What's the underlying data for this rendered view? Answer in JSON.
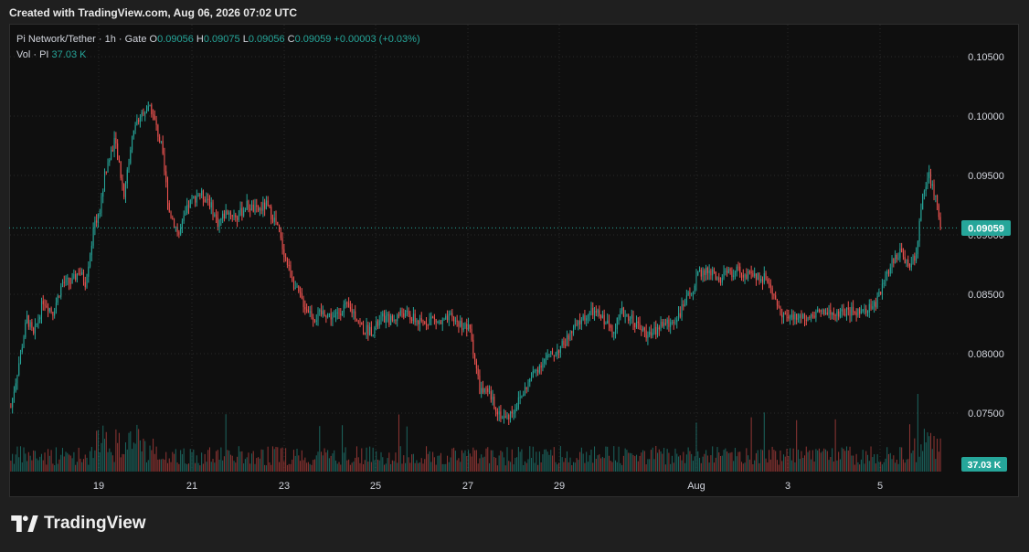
{
  "header": {
    "created_text": "Created with TradingView.com, Aug 06, 2026 07:02 UTC"
  },
  "legend": {
    "symbol": "Pi Network/Tether · 1h · Gate",
    "open_label": "O",
    "open": "0.09056",
    "high_label": "H",
    "high": "0.09075",
    "low_label": "L",
    "low": "0.09056",
    "close_label": "C",
    "close": "0.09059",
    "change": "+0.00003 (+0.03%)",
    "vol_label": "Vol · PI",
    "vol_value": "37.03 K"
  },
  "footer": {
    "brand": "TradingView"
  },
  "colors": {
    "up": "#26a69a",
    "down": "#ef5350",
    "bg": "#0f0f0f",
    "grid": "#2a2a2a",
    "last_price": "#26a69a"
  },
  "chart_data": {
    "type": "candlestick",
    "title": "Pi Network/Tether · 1h · Gate",
    "interval": "1h",
    "exchange": "Gate",
    "ylim": [
      0.0728,
      0.1062
    ],
    "y_ticks": [
      "0.10500",
      "0.10000",
      "0.09500",
      "0.09000",
      "0.08500",
      "0.08000",
      "0.07500"
    ],
    "y_tick_values": [
      0.105,
      0.1,
      0.095,
      0.09,
      0.085,
      0.08,
      0.075
    ],
    "x_ticks": [
      "19",
      "21",
      "23",
      "25",
      "27",
      "29",
      "Aug",
      "3",
      "5"
    ],
    "last_price_label": "0.09059",
    "last_price": 0.09059,
    "volume_label": "37.03 K",
    "grid": true,
    "price_anchors": [
      [
        0,
        0.0755
      ],
      [
        6,
        0.08
      ],
      [
        10,
        0.083
      ],
      [
        14,
        0.0815
      ],
      [
        20,
        0.0845
      ],
      [
        26,
        0.0835
      ],
      [
        32,
        0.086
      ],
      [
        38,
        0.086
      ],
      [
        42,
        0.087
      ],
      [
        46,
        0.086
      ],
      [
        52,
        0.091
      ],
      [
        55,
        0.092
      ],
      [
        58,
        0.095
      ],
      [
        64,
        0.098
      ],
      [
        70,
        0.0935
      ],
      [
        76,
        0.099
      ],
      [
        82,
        0.1005
      ],
      [
        87,
        0.1005
      ],
      [
        93,
        0.0975
      ],
      [
        98,
        0.092
      ],
      [
        104,
        0.09
      ],
      [
        110,
        0.0925
      ],
      [
        116,
        0.0935
      ],
      [
        122,
        0.093
      ],
      [
        128,
        0.091
      ],
      [
        134,
        0.092
      ],
      [
        140,
        0.0915
      ],
      [
        146,
        0.0925
      ],
      [
        152,
        0.092
      ],
      [
        158,
        0.0925
      ],
      [
        164,
        0.091
      ],
      [
        170,
        0.088
      ],
      [
        176,
        0.0855
      ],
      [
        182,
        0.084
      ],
      [
        188,
        0.083
      ],
      [
        194,
        0.0835
      ],
      [
        200,
        0.083
      ],
      [
        206,
        0.084
      ],
      [
        212,
        0.0835
      ],
      [
        218,
        0.082
      ],
      [
        224,
        0.082
      ],
      [
        230,
        0.083
      ],
      [
        236,
        0.0828
      ],
      [
        242,
        0.0835
      ],
      [
        248,
        0.083
      ],
      [
        254,
        0.0825
      ],
      [
        260,
        0.083
      ],
      [
        266,
        0.0825
      ],
      [
        272,
        0.083
      ],
      [
        278,
        0.0825
      ],
      [
        284,
        0.082
      ],
      [
        290,
        0.077
      ],
      [
        296,
        0.0765
      ],
      [
        302,
        0.075
      ],
      [
        306,
        0.0745
      ],
      [
        312,
        0.0755
      ],
      [
        318,
        0.077
      ],
      [
        324,
        0.0785
      ],
      [
        330,
        0.0795
      ],
      [
        336,
        0.08
      ],
      [
        342,
        0.0808
      ],
      [
        348,
        0.082
      ],
      [
        354,
        0.083
      ],
      [
        360,
        0.0835
      ],
      [
        366,
        0.083
      ],
      [
        372,
        0.082
      ],
      [
        378,
        0.0835
      ],
      [
        384,
        0.083
      ],
      [
        390,
        0.082
      ],
      [
        396,
        0.0815
      ],
      [
        402,
        0.0825
      ],
      [
        408,
        0.0825
      ],
      [
        414,
        0.0835
      ],
      [
        420,
        0.085
      ],
      [
        426,
        0.0868
      ],
      [
        432,
        0.087
      ],
      [
        438,
        0.0862
      ],
      [
        444,
        0.0868
      ],
      [
        450,
        0.087
      ],
      [
        456,
        0.0865
      ],
      [
        462,
        0.0865
      ],
      [
        468,
        0.0863
      ],
      [
        474,
        0.084
      ],
      [
        480,
        0.083
      ],
      [
        486,
        0.083
      ],
      [
        492,
        0.0832
      ],
      [
        498,
        0.0835
      ],
      [
        504,
        0.0835
      ],
      [
        510,
        0.0832
      ],
      [
        516,
        0.0835
      ],
      [
        522,
        0.0835
      ],
      [
        528,
        0.0835
      ],
      [
        534,
        0.084
      ],
      [
        540,
        0.086
      ],
      [
        546,
        0.088
      ],
      [
        550,
        0.0885
      ],
      [
        556,
        0.0875
      ],
      [
        560,
        0.0885
      ],
      [
        564,
        0.0935
      ],
      [
        568,
        0.095
      ],
      [
        572,
        0.093
      ],
      [
        575,
        0.09059
      ]
    ],
    "volume_note": "bars scaled relative to max hourly volume (fraction 0-1)"
  }
}
